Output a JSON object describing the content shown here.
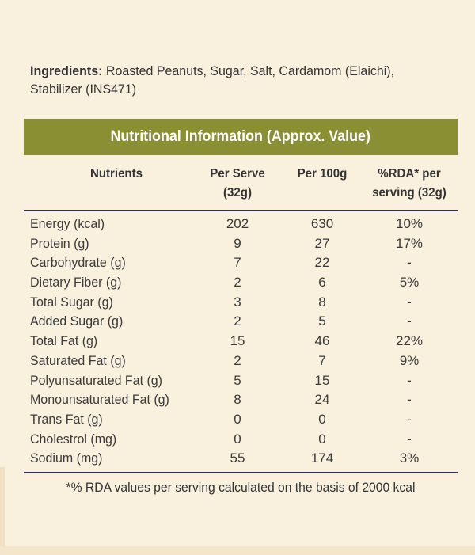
{
  "ingredients": {
    "label": "Ingredients:",
    "text": " Roasted Peanuts, Sugar, Salt, Cardamom (Elaichi), Stabilizer (INS471)"
  },
  "table": {
    "title": "Nutritional Information (Approx. Value)",
    "title_bg_color": "#8b8f34",
    "headers": {
      "nutrients": "Nutrients",
      "per_serve_line1": "Per Serve",
      "per_serve_line2": "(32g)",
      "per_100g": "Per 100g",
      "rda_line1": "%RDA* per",
      "rda_line2": "serving (32g)"
    },
    "rows": [
      {
        "name": "Energy (kcal)",
        "per_serve": "202",
        "per_100g": "630",
        "rda": "10%"
      },
      {
        "name": "Protein (g)",
        "per_serve": "9",
        "per_100g": "27",
        "rda": "17%"
      },
      {
        "name": "Carbohydrate (g)",
        "per_serve": "7",
        "per_100g": "22",
        "rda": "-"
      },
      {
        "name": "Dietary Fiber (g)",
        "per_serve": "2",
        "per_100g": "6",
        "rda": "5%"
      },
      {
        "name": "Total Sugar (g)",
        "per_serve": "3",
        "per_100g": "8",
        "rda": "-"
      },
      {
        "name": "Added Sugar (g)",
        "per_serve": "2",
        "per_100g": "5",
        "rda": "-"
      },
      {
        "name": "Total Fat (g)",
        "per_serve": "15",
        "per_100g": "46",
        "rda": "22%"
      },
      {
        "name": "Saturated Fat (g)",
        "per_serve": "2",
        "per_100g": "7",
        "rda": "9%"
      },
      {
        "name": "Polyunsaturated Fat (g)",
        "per_serve": "5",
        "per_100g": "15",
        "rda": "-"
      },
      {
        "name": "Monounsaturated Fat (g)",
        "per_serve": "8",
        "per_100g": "24",
        "rda": "-"
      },
      {
        "name": "Trans Fat (g)",
        "per_serve": "0",
        "per_100g": "0",
        "rda": "-"
      },
      {
        "name": "Cholestrol (mg)",
        "per_serve": "0",
        "per_100g": "0",
        "rda": "-"
      },
      {
        "name": "Sodium (mg)",
        "per_serve": "55",
        "per_100g": "174",
        "rda": "3%"
      }
    ],
    "footnote": "*% RDA values per serving calculated on the basis of 2000 kcal"
  }
}
